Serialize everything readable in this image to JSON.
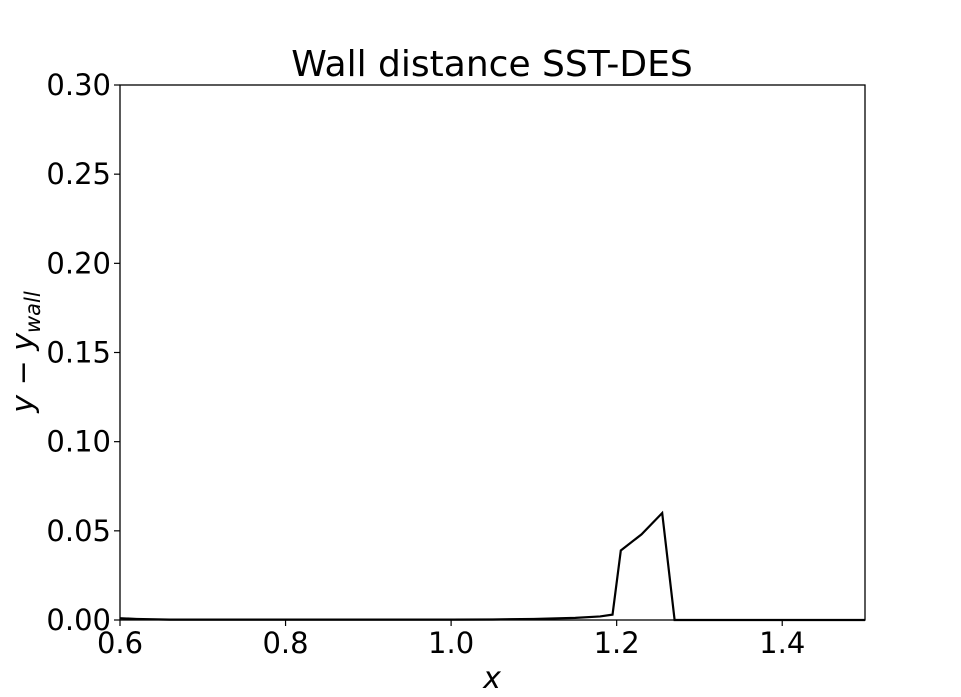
{
  "chart_data": {
    "type": "line",
    "title": "Wall distance SST-DES",
    "xlabel": "x",
    "ylabel_main": "y − y",
    "ylabel_sub": "wall",
    "xlim": [
      0.6,
      1.5
    ],
    "ylim": [
      0.0,
      0.3
    ],
    "x_ticks": [
      0.6,
      0.8,
      1.0,
      1.2,
      1.4
    ],
    "x_tick_labels": [
      "0.6",
      "0.8",
      "1.0",
      "1.2",
      "1.4"
    ],
    "y_ticks": [
      0.0,
      0.05,
      0.1,
      0.15,
      0.2,
      0.25,
      0.3
    ],
    "y_tick_labels": [
      "0.00",
      "0.05",
      "0.10",
      "0.15",
      "0.20",
      "0.25",
      "0.30"
    ],
    "grid": false,
    "series": [
      {
        "color": "#000000",
        "x": [
          0.6,
          0.62,
          0.66,
          0.7,
          0.8,
          0.9,
          1.0,
          1.05,
          1.1,
          1.15,
          1.18,
          1.195,
          1.205,
          1.23,
          1.255,
          1.27,
          1.3,
          1.5
        ],
        "y": [
          0.001,
          0.0006,
          0.0002,
          0.0002,
          0.0002,
          0.0002,
          0.0002,
          0.0003,
          0.0006,
          0.0012,
          0.002,
          0.003,
          0.039,
          0.048,
          0.06,
          0.0,
          0.0,
          0.0
        ]
      }
    ]
  }
}
